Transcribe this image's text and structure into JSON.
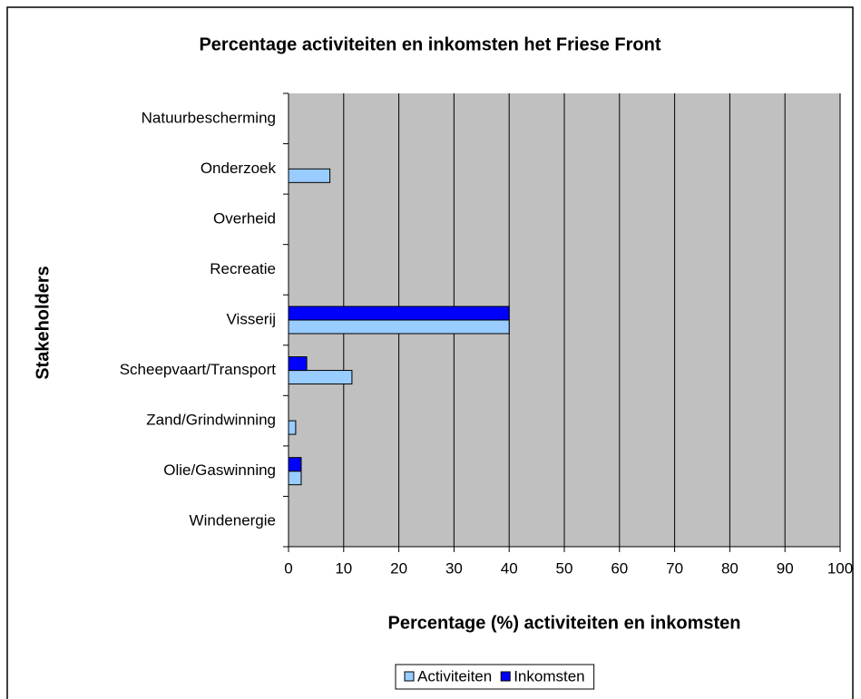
{
  "chart_data": {
    "type": "bar",
    "orientation": "horizontal",
    "title": "Percentage activiteiten en inkomsten het Friese Front",
    "x_label": "Percentage (%) activiteiten en inkomsten",
    "y_label": "Stakeholders",
    "categories": [
      "Natuurbescherming",
      "Onderzoek",
      "Overheid",
      "Recreatie",
      "Visserij",
      "Scheepvaart/Transport",
      "Zand/Grindwinning",
      "Olie/Gaswinning",
      "Windenergie"
    ],
    "series": [
      {
        "name": "Activiteiten",
        "color": "#99ccff",
        "values": [
          0,
          7.5,
          0,
          0,
          40,
          11.5,
          1.3,
          2.3,
          0
        ]
      },
      {
        "name": "Inkomsten",
        "color": "#0000ff",
        "values": [
          0,
          0,
          0,
          0,
          40,
          3.3,
          0,
          2.3,
          0
        ]
      }
    ],
    "xlim": [
      0,
      100
    ],
    "xticks": [
      0,
      10,
      20,
      30,
      40,
      50,
      60,
      70,
      80,
      90,
      100
    ],
    "grid": true,
    "legend": "bottom"
  }
}
